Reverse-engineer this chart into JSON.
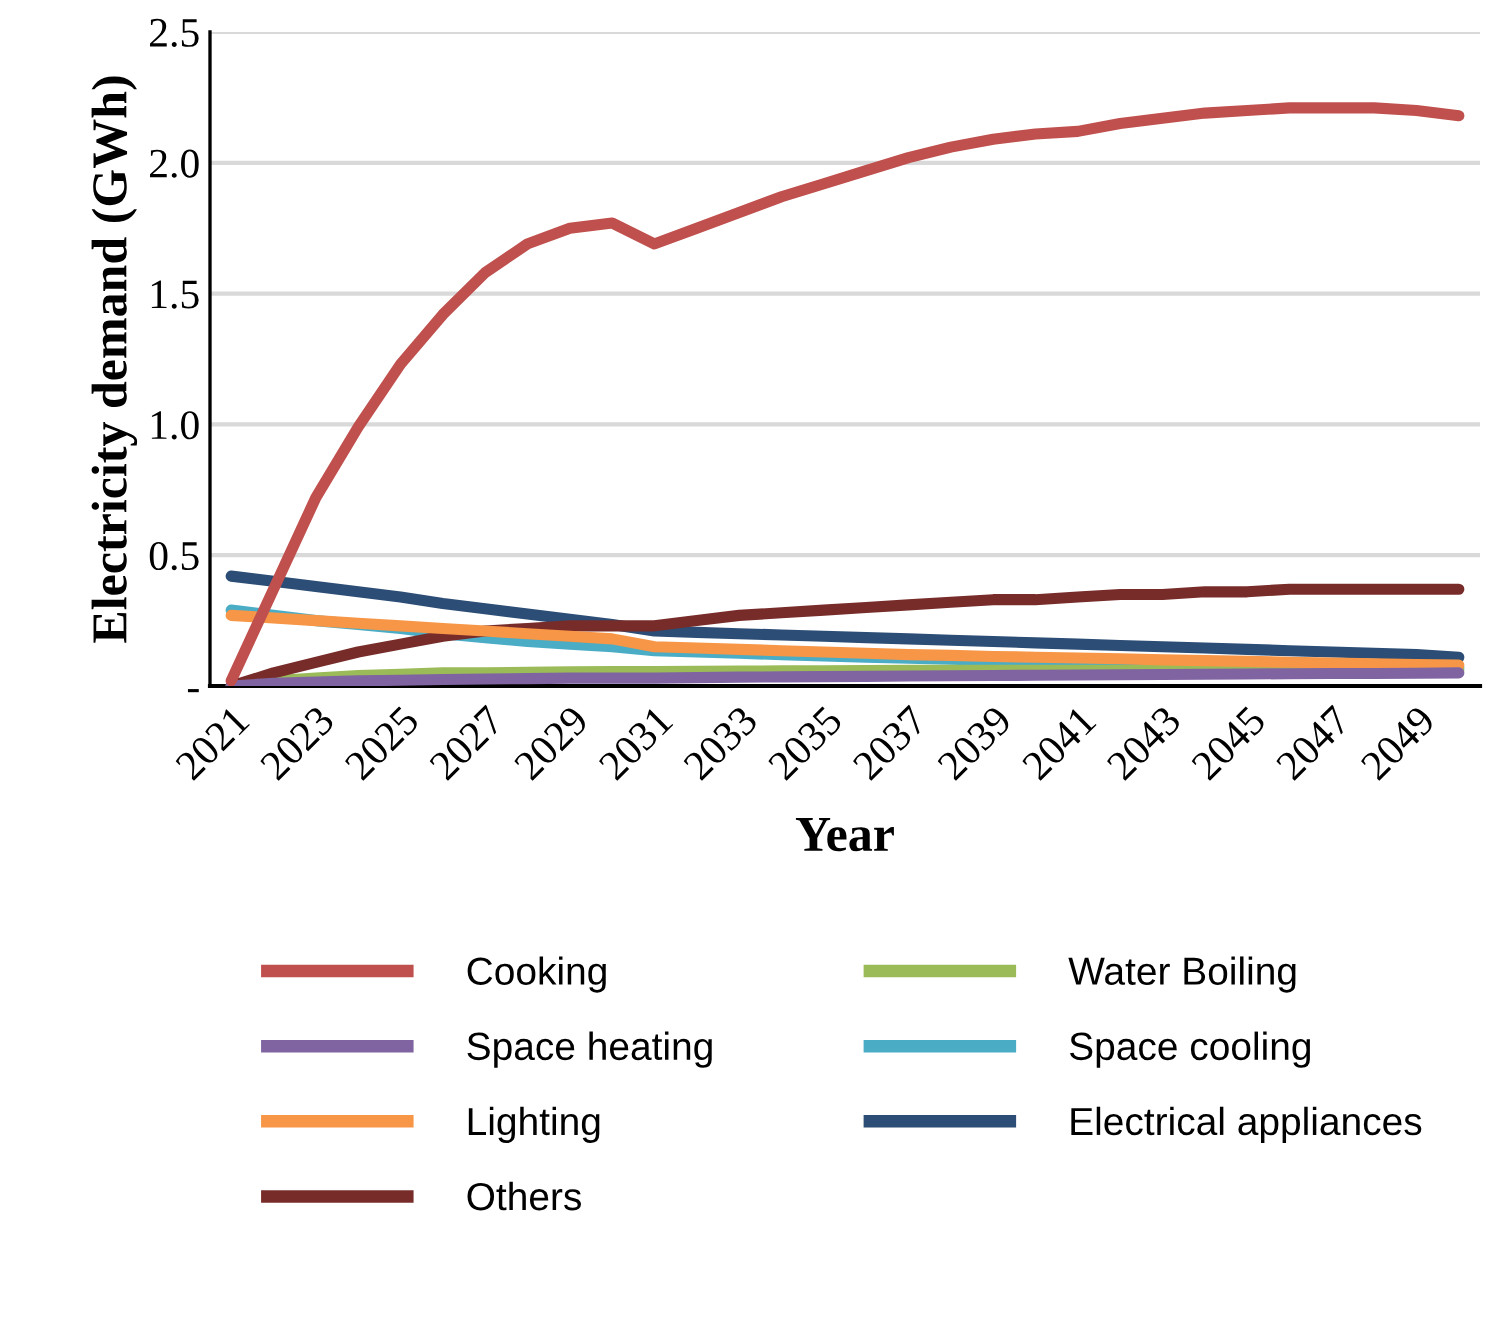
{
  "chart_data": {
    "type": "line",
    "xlabel": "Year",
    "ylabel": "Electricity demand (GWh)",
    "categories": [
      "2021",
      null,
      "2023",
      null,
      "2025",
      null,
      "2027",
      null,
      "2029",
      null,
      "2031",
      null,
      "2033",
      null,
      "2035",
      null,
      "2037",
      null,
      "2039",
      null,
      "2041",
      null,
      "2043",
      null,
      "2045",
      null,
      "2047",
      null,
      "2049",
      null
    ],
    "series": [
      {
        "name": "Cooking",
        "color": "#c0504d",
        "values": [
          0.02,
          0.37,
          0.72,
          0.99,
          1.23,
          1.42,
          1.58,
          1.69,
          1.75,
          1.77,
          1.69,
          1.75,
          1.81,
          1.87,
          1.92,
          1.97,
          2.02,
          2.06,
          2.09,
          2.11,
          2.12,
          2.15,
          2.17,
          2.19,
          2.2,
          2.21,
          2.21,
          2.21,
          2.2,
          2.18
        ]
      },
      {
        "name": "Space heating",
        "color": "#8064a2",
        "values": [
          0.0,
          0.01,
          0.015,
          0.02,
          0.022,
          0.025,
          0.027,
          0.028,
          0.03,
          0.03,
          0.03,
          0.032,
          0.034,
          0.035,
          0.036,
          0.037,
          0.038,
          0.039,
          0.04,
          0.041,
          0.042,
          0.043,
          0.044,
          0.045,
          0.046,
          0.047,
          0.048,
          0.048,
          0.049,
          0.05
        ]
      },
      {
        "name": "Lighting",
        "color": "#f79646",
        "values": [
          0.27,
          0.26,
          0.25,
          0.24,
          0.23,
          0.22,
          0.21,
          0.2,
          0.19,
          0.18,
          0.15,
          0.145,
          0.14,
          0.135,
          0.13,
          0.125,
          0.12,
          0.117,
          0.113,
          0.11,
          0.107,
          0.104,
          0.1,
          0.097,
          0.094,
          0.091,
          0.088,
          0.085,
          0.082,
          0.08
        ]
      },
      {
        "name": "Others",
        "color": "#772c2a",
        "values": [
          0.0,
          0.05,
          0.09,
          0.13,
          0.16,
          0.19,
          0.21,
          0.22,
          0.23,
          0.23,
          0.23,
          0.25,
          0.27,
          0.28,
          0.29,
          0.3,
          0.31,
          0.32,
          0.33,
          0.33,
          0.34,
          0.35,
          0.35,
          0.36,
          0.36,
          0.37,
          0.37,
          0.37,
          0.37,
          0.37
        ]
      },
      {
        "name": "Water Boiling",
        "color": "#9bbb59",
        "values": [
          0.0,
          0.02,
          0.03,
          0.04,
          0.045,
          0.05,
          0.05,
          0.052,
          0.054,
          0.055,
          0.055,
          0.056,
          0.057,
          0.058,
          0.058,
          0.059,
          0.06,
          0.06,
          0.06,
          0.06,
          0.06,
          0.06,
          0.06,
          0.06,
          0.06,
          0.06,
          0.06,
          0.06,
          0.06,
          0.06
        ]
      },
      {
        "name": "Space cooling",
        "color": "#4bacc6",
        "values": [
          0.29,
          0.27,
          0.25,
          0.235,
          0.22,
          0.2,
          0.185,
          0.17,
          0.16,
          0.15,
          0.135,
          0.13,
          0.125,
          0.12,
          0.115,
          0.11,
          0.106,
          0.102,
          0.098,
          0.094,
          0.09,
          0.087,
          0.084,
          0.081,
          0.078,
          0.076,
          0.074,
          0.072,
          0.071,
          0.07
        ]
      },
      {
        "name": "Electrical appliances",
        "color": "#2c4d75",
        "values": [
          0.42,
          0.4,
          0.38,
          0.36,
          0.34,
          0.315,
          0.295,
          0.275,
          0.255,
          0.235,
          0.21,
          0.205,
          0.2,
          0.195,
          0.19,
          0.185,
          0.18,
          0.175,
          0.17,
          0.165,
          0.16,
          0.155,
          0.15,
          0.145,
          0.14,
          0.135,
          0.13,
          0.125,
          0.12,
          0.11
        ]
      }
    ],
    "ylim": [
      0,
      2.5
    ],
    "yticks": [
      {
        "value": 0,
        "label": "-"
      },
      {
        "value": 0.5,
        "label": "0.5"
      },
      {
        "value": 1.0,
        "label": "1.0"
      },
      {
        "value": 1.5,
        "label": "1.5"
      },
      {
        "value": 2.0,
        "label": "2.0"
      },
      {
        "value": 2.5,
        "label": "2.5"
      }
    ],
    "grid": "y",
    "legend": "bottom",
    "marker": "none",
    "line_style": "solid"
  }
}
